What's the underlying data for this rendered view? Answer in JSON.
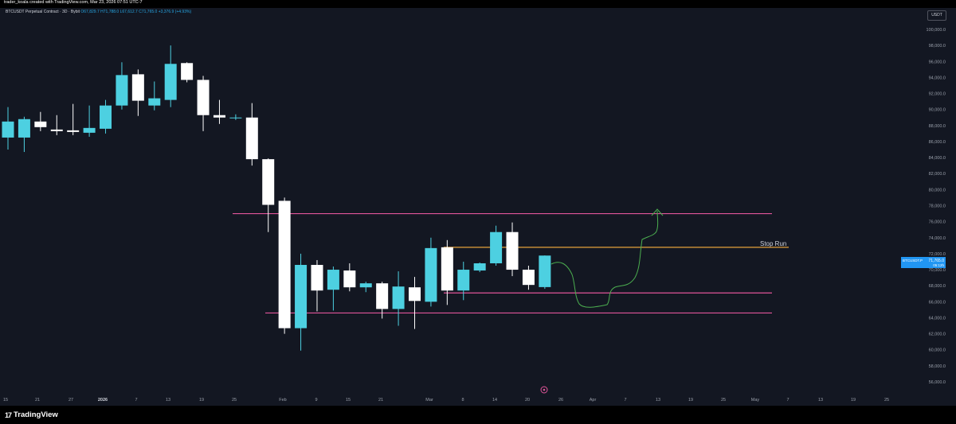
{
  "header": {
    "credit": "trader_koala created with TradingView.com, Mar 23, 2026 07:51 UTC-7",
    "symbol": "BTCUSDT Perpetual Contract · 3D · Bybit",
    "ohlc": "O67,829.7  H71,788.0  L67,612.7  C71,765.0  +3,376.9 (+4.93%)"
  },
  "currency_badge": "USDT",
  "price_label": {
    "symbol": "BTCUSDT.P",
    "price": "71,765.0",
    "countdown": "05:12h"
  },
  "footer": {
    "logo_mark": "17",
    "logo_text": "TradingView"
  },
  "annotation": {
    "stop_run": "Stop Run"
  },
  "colors": {
    "background": "#131722",
    "up": "#4dd0e1",
    "down": "#ffffff",
    "level": "#e0559a",
    "stop_run": "#e6a13b",
    "path": "#4caf50",
    "axis_text": "#9aa0ab"
  },
  "chart_data": {
    "type": "candlestick",
    "ylim": [
      54500,
      102000
    ],
    "y_ticks": [
      56000,
      58000,
      60000,
      62000,
      64000,
      66000,
      68000,
      70000,
      72000,
      74000,
      76000,
      78000,
      80000,
      82000,
      84000,
      86000,
      88000,
      90000,
      92000,
      94000,
      96000,
      98000,
      100000
    ],
    "x_ticks": [
      "15",
      "21",
      "27",
      "2026",
      "7",
      "13",
      "19",
      "25",
      "Feb",
      "9",
      "15",
      "21",
      "Mar",
      "8",
      "14",
      "20",
      "26",
      "Apr",
      "7",
      "13",
      "19",
      "25",
      "May",
      "7",
      "13",
      "19",
      "25"
    ],
    "x_tick_bold": [
      "2026"
    ],
    "candles": [
      {
        "o": 86500,
        "h": 90300,
        "l": 85000,
        "c": 88500
      },
      {
        "o": 86500,
        "h": 89100,
        "l": 84700,
        "c": 88800
      },
      {
        "o": 88500,
        "h": 89700,
        "l": 87300,
        "c": 87800
      },
      {
        "o": 87500,
        "h": 89300,
        "l": 86800,
        "c": 87300
      },
      {
        "o": 87400,
        "h": 90700,
        "l": 86800,
        "c": 87200
      },
      {
        "o": 87100,
        "h": 90500,
        "l": 86600,
        "c": 87700
      },
      {
        "o": 87600,
        "h": 91200,
        "l": 87000,
        "c": 90500
      },
      {
        "o": 90500,
        "h": 95900,
        "l": 90000,
        "c": 94300
      },
      {
        "o": 94400,
        "h": 95000,
        "l": 89200,
        "c": 91100
      },
      {
        "o": 90500,
        "h": 93500,
        "l": 89900,
        "c": 91400
      },
      {
        "o": 91200,
        "h": 98000,
        "l": 90300,
        "c": 95700
      },
      {
        "o": 95800,
        "h": 95900,
        "l": 93400,
        "c": 93700
      },
      {
        "o": 93700,
        "h": 94200,
        "l": 87300,
        "c": 89300
      },
      {
        "o": 89300,
        "h": 91200,
        "l": 88200,
        "c": 89000
      },
      {
        "o": 89000,
        "h": 89400,
        "l": 88700,
        "c": 89000
      },
      {
        "o": 89000,
        "h": 90800,
        "l": 83000,
        "c": 83800
      },
      {
        "o": 83800,
        "h": 83900,
        "l": 74700,
        "c": 78100
      },
      {
        "o": 78600,
        "h": 79000,
        "l": 62000,
        "c": 62700
      },
      {
        "o": 62700,
        "h": 72000,
        "l": 59900,
        "c": 70600
      },
      {
        "o": 70600,
        "h": 71200,
        "l": 64800,
        "c": 67400
      },
      {
        "o": 67500,
        "h": 70400,
        "l": 64900,
        "c": 70000
      },
      {
        "o": 69900,
        "h": 70800,
        "l": 67300,
        "c": 67800
      },
      {
        "o": 67800,
        "h": 68500,
        "l": 67200,
        "c": 68300
      },
      {
        "o": 68300,
        "h": 68500,
        "l": 63900,
        "c": 65100
      },
      {
        "o": 65100,
        "h": 69800,
        "l": 63000,
        "c": 67900
      },
      {
        "o": 67800,
        "h": 69100,
        "l": 62600,
        "c": 66100
      },
      {
        "o": 66000,
        "h": 74000,
        "l": 65400,
        "c": 72700
      },
      {
        "o": 72800,
        "h": 73700,
        "l": 65600,
        "c": 67400
      },
      {
        "o": 67400,
        "h": 71000,
        "l": 66200,
        "c": 70000
      },
      {
        "o": 69900,
        "h": 70900,
        "l": 69700,
        "c": 70800
      },
      {
        "o": 70800,
        "h": 75500,
        "l": 70500,
        "c": 74700
      },
      {
        "o": 74700,
        "h": 75900,
        "l": 69200,
        "c": 70000
      },
      {
        "o": 70000,
        "h": 70500,
        "l": 67500,
        "c": 68100
      },
      {
        "o": 67829.7,
        "h": 71788,
        "l": 67612.7,
        "c": 71765
      }
    ],
    "levels": [
      {
        "name": "upper-range",
        "price": 77000,
        "color": "#e0559a"
      },
      {
        "name": "stop-run",
        "price": 72800,
        "color": "#e6a13b"
      },
      {
        "name": "mid-range",
        "price": 67100,
        "color": "#e0559a"
      },
      {
        "name": "lower-range",
        "price": 64600,
        "color": "#e0559a"
      }
    ],
    "grid": false
  }
}
